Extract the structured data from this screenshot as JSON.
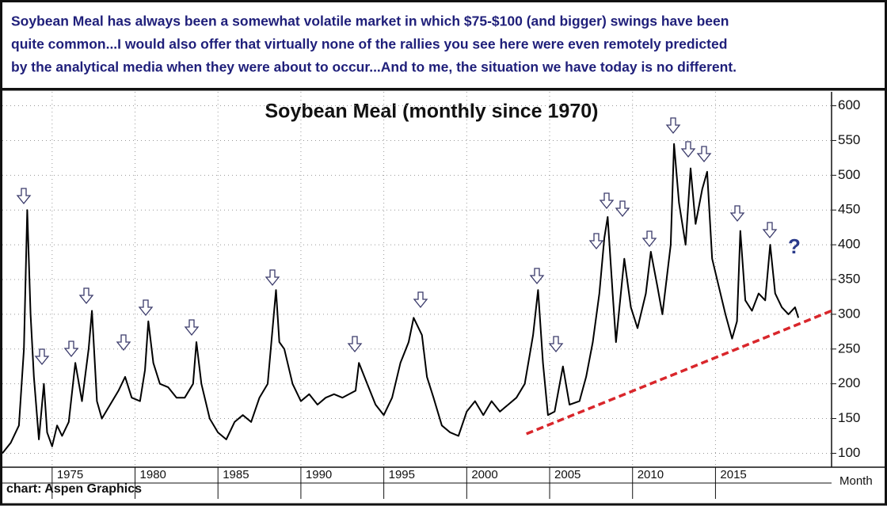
{
  "chart_data": {
    "type": "line",
    "description": [
      "Soybean Meal has always been a somewhat volatile market in which $75-$100 (and bigger) swings have been",
      "quite common...I would also offer that virtually none of the rallies you see here were even remotely predicted",
      "by the analytical media when they were about to occur...And to me, the situation we have today is no different."
    ],
    "title": "Soybean Meal (monthly since 1970)",
    "source": "chart: Aspen Graphics",
    "x_label": "Month",
    "annotation": "?",
    "xlim": [
      1972,
      2022
    ],
    "xticks": [
      1975,
      1980,
      1985,
      1990,
      1995,
      2000,
      2005,
      2010,
      2015
    ],
    "ylim": [
      80,
      620
    ],
    "yticks": [
      100,
      150,
      200,
      250,
      300,
      350,
      400,
      450,
      500,
      550,
      600
    ],
    "grid": true,
    "series": [
      {
        "color": "#000000",
        "x": [
          1972.0,
          1972.5,
          1973.0,
          1973.3,
          1973.5,
          1973.7,
          1973.9,
          1974.2,
          1974.5,
          1974.7,
          1975.0,
          1975.3,
          1975.6,
          1976.0,
          1976.4,
          1976.8,
          1977.2,
          1977.4,
          1977.7,
          1978.0,
          1978.5,
          1979.0,
          1979.4,
          1979.8,
          1980.3,
          1980.6,
          1980.8,
          1981.1,
          1981.5,
          1982.0,
          1982.5,
          1983.0,
          1983.5,
          1983.7,
          1984.0,
          1984.5,
          1985.0,
          1985.5,
          1986.0,
          1986.5,
          1987.0,
          1987.5,
          1988.0,
          1988.5,
          1988.7,
          1989.0,
          1989.5,
          1990.0,
          1990.5,
          1991.0,
          1991.5,
          1992.0,
          1992.5,
          1993.3,
          1993.5,
          1994.0,
          1994.5,
          1995.0,
          1995.5,
          1996.0,
          1996.5,
          1996.8,
          1997.3,
          1997.6,
          1998.0,
          1998.5,
          1999.0,
          1999.5,
          2000.0,
          2000.5,
          2001.0,
          2001.5,
          2002.0,
          2002.5,
          2003.0,
          2003.5,
          2004.0,
          2004.3,
          2004.6,
          2004.9,
          2005.3,
          2005.8,
          2006.2,
          2006.8,
          2007.2,
          2007.6,
          2008.0,
          2008.3,
          2008.5,
          2008.8,
          2009.0,
          2009.5,
          2009.9,
          2010.3,
          2010.8,
          2011.1,
          2011.5,
          2011.8,
          2012.3,
          2012.5,
          2012.8,
          2013.2,
          2013.5,
          2013.8,
          2014.2,
          2014.5,
          2014.8,
          2015.2,
          2015.6,
          2016.0,
          2016.3,
          2016.5,
          2016.8,
          2017.2,
          2017.6,
          2018.0,
          2018.3,
          2018.6,
          2019.0,
          2019.4,
          2019.8,
          2020.0
        ],
        "values": [
          100,
          115,
          140,
          250,
          450,
          300,
          210,
          120,
          200,
          130,
          110,
          140,
          125,
          145,
          230,
          175,
          250,
          305,
          175,
          150,
          170,
          190,
          210,
          180,
          175,
          220,
          290,
          230,
          200,
          195,
          180,
          180,
          200,
          260,
          200,
          150,
          130,
          120,
          145,
          155,
          145,
          180,
          200,
          335,
          260,
          250,
          200,
          175,
          185,
          170,
          180,
          185,
          180,
          190,
          230,
          200,
          170,
          155,
          180,
          230,
          260,
          295,
          270,
          210,
          180,
          140,
          130,
          125,
          160,
          175,
          155,
          175,
          160,
          170,
          180,
          200,
          270,
          335,
          230,
          155,
          160,
          225,
          170,
          175,
          210,
          260,
          330,
          410,
          440,
          330,
          260,
          380,
          310,
          280,
          330,
          390,
          340,
          300,
          400,
          545,
          460,
          400,
          510,
          430,
          480,
          505,
          380,
          340,
          300,
          265,
          290,
          420,
          320,
          305,
          330,
          320,
          400,
          330,
          310,
          300,
          310,
          295
        ]
      }
    ],
    "trendline": {
      "color": "#d9262b",
      "x": [
        2003.6,
        2022
      ],
      "values": [
        128,
        305
      ]
    }
  }
}
